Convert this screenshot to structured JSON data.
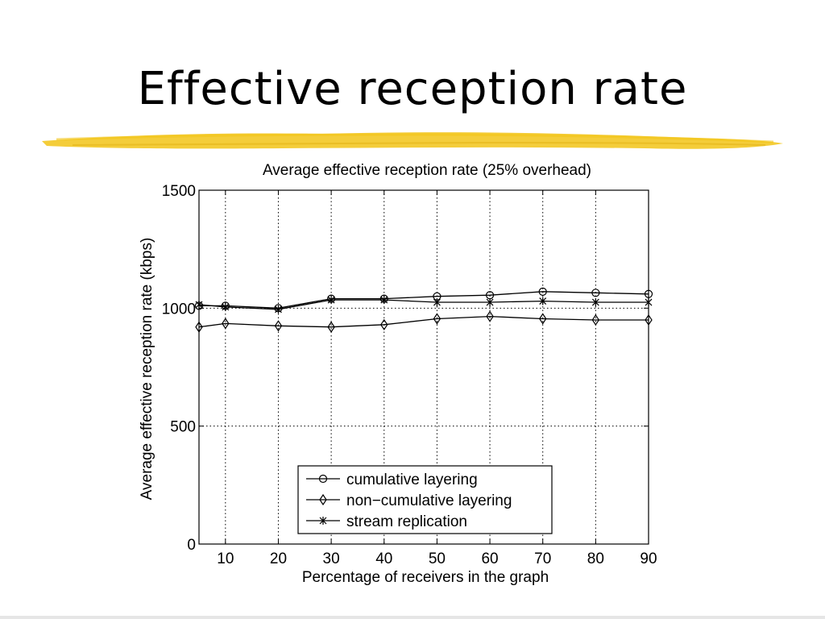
{
  "slide": {
    "title": "Effective reception rate",
    "underline_color": "#f2c418"
  },
  "chart_data": {
    "type": "line",
    "title": "Average effective reception rate (25% overhead)",
    "xlabel": "Percentage of receivers in the graph",
    "ylabel": "Average effective reception rate (kbps)",
    "xlim": [
      5,
      90
    ],
    "ylim": [
      0,
      1500
    ],
    "xticks": [
      10,
      20,
      30,
      40,
      50,
      60,
      70,
      80,
      90
    ],
    "yticks": [
      0,
      500,
      1000,
      1500
    ],
    "grid": true,
    "legend_position": "bottom-center",
    "series": [
      {
        "name": "cumulative layering",
        "marker": "circle",
        "x": [
          5,
          10,
          20,
          30,
          40,
          50,
          60,
          70,
          80,
          90
        ],
        "y": [
          1010,
          1010,
          1000,
          1040,
          1040,
          1050,
          1055,
          1070,
          1065,
          1060
        ]
      },
      {
        "name": "non−cumulative layering",
        "marker": "diamond",
        "x": [
          5,
          10,
          20,
          30,
          40,
          50,
          60,
          70,
          80,
          90
        ],
        "y": [
          920,
          935,
          925,
          920,
          930,
          955,
          965,
          955,
          950,
          950
        ]
      },
      {
        "name": "stream replication",
        "marker": "star",
        "x": [
          5,
          10,
          20,
          30,
          40,
          50,
          60,
          70,
          80,
          90
        ],
        "y": [
          1015,
          1005,
          995,
          1035,
          1035,
          1025,
          1025,
          1030,
          1025,
          1025
        ]
      }
    ]
  }
}
